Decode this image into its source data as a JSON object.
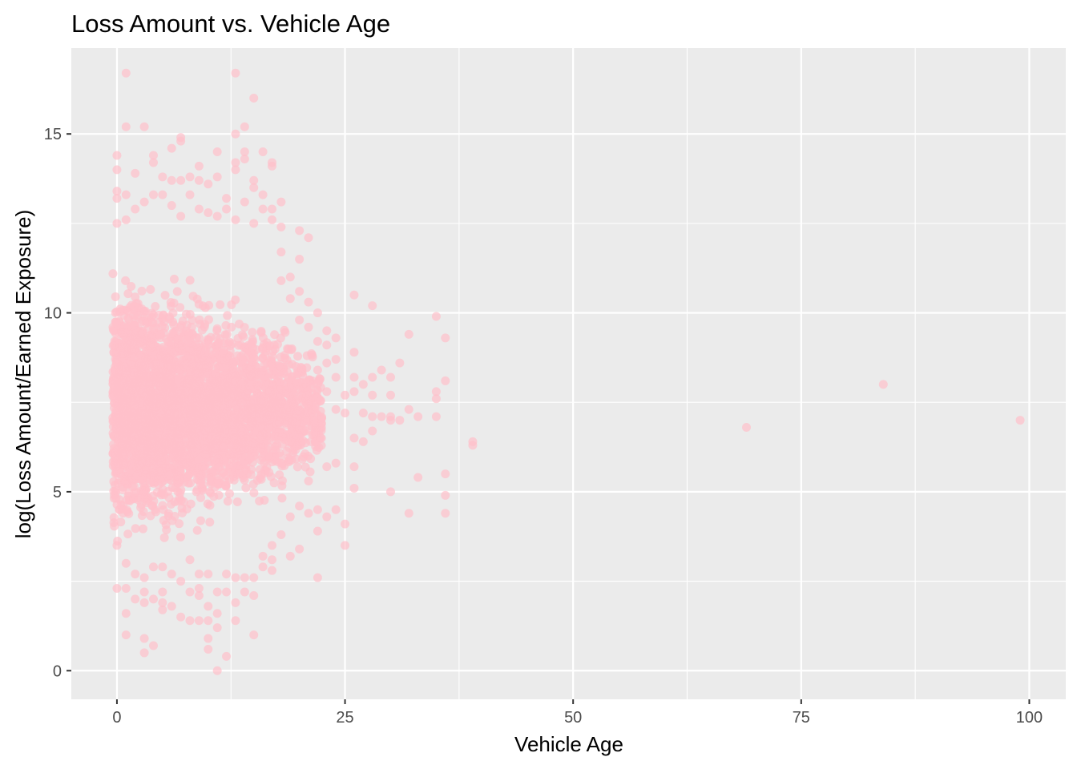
{
  "chart_data": {
    "type": "scatter",
    "title": "Loss Amount vs. Vehicle Age",
    "xlabel": "Vehicle Age",
    "ylabel": "log(Loss Amount/Earned Exposure)",
    "xlim": [
      -5,
      104
    ],
    "ylim": [
      -0.8,
      17.4
    ],
    "x_ticks": [
      0,
      25,
      50,
      75,
      100
    ],
    "y_ticks": [
      0,
      5,
      10,
      15
    ],
    "x_tick_labels": [
      "0",
      "25",
      "50",
      "75",
      "100"
    ],
    "y_tick_labels": [
      "0",
      "5",
      "10",
      "15"
    ],
    "grid": true,
    "legend": "none",
    "colors": {
      "panel": "#ebebeb",
      "grid": "#ffffff",
      "point": "#ffc0cb",
      "tick": "#333333",
      "tick_label": "#4d4d4d"
    },
    "point_opacity": 0.7,
    "points": [
      {
        "x": 0,
        "y": 14.4
      },
      {
        "x": 0,
        "y": 14.0
      },
      {
        "x": 0,
        "y": 13.4
      },
      {
        "x": 0,
        "y": 13.2
      },
      {
        "x": 0,
        "y": 12.5
      },
      {
        "x": 0,
        "y": 3.5
      },
      {
        "x": 0,
        "y": 2.3
      },
      {
        "x": 1,
        "y": 16.7
      },
      {
        "x": 1,
        "y": 15.2
      },
      {
        "x": 1,
        "y": 13.3
      },
      {
        "x": 1,
        "y": 12.6
      },
      {
        "x": 1,
        "y": 3.0
      },
      {
        "x": 1,
        "y": 2.3
      },
      {
        "x": 1,
        "y": 1.6
      },
      {
        "x": 1,
        "y": 1.0
      },
      {
        "x": 2,
        "y": 13.9
      },
      {
        "x": 2,
        "y": 12.9
      },
      {
        "x": 2,
        "y": 2.7
      },
      {
        "x": 2,
        "y": 2.0
      },
      {
        "x": 3,
        "y": 15.2
      },
      {
        "x": 3,
        "y": 13.1
      },
      {
        "x": 3,
        "y": 2.6
      },
      {
        "x": 3,
        "y": 2.2
      },
      {
        "x": 3,
        "y": 1.9
      },
      {
        "x": 3,
        "y": 0.9
      },
      {
        "x": 3,
        "y": 0.5
      },
      {
        "x": 4,
        "y": 14.4
      },
      {
        "x": 4,
        "y": 14.2
      },
      {
        "x": 4,
        "y": 13.3
      },
      {
        "x": 4,
        "y": 2.9
      },
      {
        "x": 4,
        "y": 2.0
      },
      {
        "x": 4,
        "y": 0.7
      },
      {
        "x": 5,
        "y": 13.8
      },
      {
        "x": 5,
        "y": 13.3
      },
      {
        "x": 5,
        "y": 2.9
      },
      {
        "x": 5,
        "y": 2.2
      },
      {
        "x": 5,
        "y": 1.9
      },
      {
        "x": 5,
        "y": 1.7
      },
      {
        "x": 6,
        "y": 14.6
      },
      {
        "x": 6,
        "y": 13.7
      },
      {
        "x": 6,
        "y": 13.0
      },
      {
        "x": 6,
        "y": 2.7
      },
      {
        "x": 6,
        "y": 1.8
      },
      {
        "x": 7,
        "y": 14.9
      },
      {
        "x": 7,
        "y": 14.8
      },
      {
        "x": 7,
        "y": 13.7
      },
      {
        "x": 7,
        "y": 12.7
      },
      {
        "x": 7,
        "y": 2.5
      },
      {
        "x": 7,
        "y": 1.5
      },
      {
        "x": 8,
        "y": 13.8
      },
      {
        "x": 8,
        "y": 13.3
      },
      {
        "x": 8,
        "y": 3.1
      },
      {
        "x": 8,
        "y": 2.2
      },
      {
        "x": 8,
        "y": 1.4
      },
      {
        "x": 9,
        "y": 14.1
      },
      {
        "x": 9,
        "y": 13.7
      },
      {
        "x": 9,
        "y": 12.9
      },
      {
        "x": 9,
        "y": 2.7
      },
      {
        "x": 9,
        "y": 2.3
      },
      {
        "x": 9,
        "y": 2.1
      },
      {
        "x": 9,
        "y": 1.4
      },
      {
        "x": 10,
        "y": 13.6
      },
      {
        "x": 10,
        "y": 12.8
      },
      {
        "x": 10,
        "y": 2.7
      },
      {
        "x": 10,
        "y": 1.8
      },
      {
        "x": 10,
        "y": 1.4
      },
      {
        "x": 10,
        "y": 0.9
      },
      {
        "x": 10,
        "y": 0.6
      },
      {
        "x": 11,
        "y": 14.5
      },
      {
        "x": 11,
        "y": 13.8
      },
      {
        "x": 11,
        "y": 12.7
      },
      {
        "x": 11,
        "y": 2.2
      },
      {
        "x": 11,
        "y": 1.6
      },
      {
        "x": 11,
        "y": 1.2
      },
      {
        "x": 11,
        "y": 0.0
      },
      {
        "x": 12,
        "y": 13.2
      },
      {
        "x": 12,
        "y": 12.9
      },
      {
        "x": 12,
        "y": 2.7
      },
      {
        "x": 12,
        "y": 2.2
      },
      {
        "x": 12,
        "y": 0.4
      },
      {
        "x": 13,
        "y": 16.7
      },
      {
        "x": 13,
        "y": 15.0
      },
      {
        "x": 13,
        "y": 14.2
      },
      {
        "x": 13,
        "y": 14.0
      },
      {
        "x": 13,
        "y": 12.6
      },
      {
        "x": 13,
        "y": 2.6
      },
      {
        "x": 13,
        "y": 1.9
      },
      {
        "x": 13,
        "y": 1.4
      },
      {
        "x": 14,
        "y": 15.2
      },
      {
        "x": 14,
        "y": 14.5
      },
      {
        "x": 14,
        "y": 14.3
      },
      {
        "x": 14,
        "y": 13.1
      },
      {
        "x": 14,
        "y": 2.6
      },
      {
        "x": 14,
        "y": 2.2
      },
      {
        "x": 15,
        "y": 16.0
      },
      {
        "x": 15,
        "y": 13.7
      },
      {
        "x": 15,
        "y": 13.5
      },
      {
        "x": 15,
        "y": 12.5
      },
      {
        "x": 15,
        "y": 2.6
      },
      {
        "x": 15,
        "y": 2.1
      },
      {
        "x": 15,
        "y": 1.0
      },
      {
        "x": 16,
        "y": 14.5
      },
      {
        "x": 16,
        "y": 13.3
      },
      {
        "x": 16,
        "y": 12.9
      },
      {
        "x": 16,
        "y": 3.2
      },
      {
        "x": 16,
        "y": 2.9
      },
      {
        "x": 17,
        "y": 14.1
      },
      {
        "x": 17,
        "y": 14.2
      },
      {
        "x": 17,
        "y": 12.9
      },
      {
        "x": 17,
        "y": 12.6
      },
      {
        "x": 17,
        "y": 3.5
      },
      {
        "x": 17,
        "y": 3.1
      },
      {
        "x": 17,
        "y": 2.8
      },
      {
        "x": 18,
        "y": 13.1
      },
      {
        "x": 18,
        "y": 12.4
      },
      {
        "x": 18,
        "y": 11.7
      },
      {
        "x": 18,
        "y": 10.9
      },
      {
        "x": 18,
        "y": 3.8
      },
      {
        "x": 19,
        "y": 11.0
      },
      {
        "x": 19,
        "y": 10.4
      },
      {
        "x": 19,
        "y": 4.3
      },
      {
        "x": 19,
        "y": 3.2
      },
      {
        "x": 20,
        "y": 12.3
      },
      {
        "x": 20,
        "y": 11.5
      },
      {
        "x": 20,
        "y": 10.6
      },
      {
        "x": 20,
        "y": 9.8
      },
      {
        "x": 20,
        "y": 4.6
      },
      {
        "x": 20,
        "y": 3.4
      },
      {
        "x": 21,
        "y": 12.1
      },
      {
        "x": 21,
        "y": 10.3
      },
      {
        "x": 21,
        "y": 9.6
      },
      {
        "x": 21,
        "y": 5.3
      },
      {
        "x": 21,
        "y": 4.4
      },
      {
        "x": 22,
        "y": 10.0
      },
      {
        "x": 22,
        "y": 9.2
      },
      {
        "x": 22,
        "y": 8.4
      },
      {
        "x": 22,
        "y": 4.5
      },
      {
        "x": 22,
        "y": 3.9
      },
      {
        "x": 22,
        "y": 2.6
      },
      {
        "x": 23,
        "y": 9.5
      },
      {
        "x": 23,
        "y": 9.1
      },
      {
        "x": 23,
        "y": 8.6
      },
      {
        "x": 23,
        "y": 7.8
      },
      {
        "x": 23,
        "y": 5.7
      },
      {
        "x": 23,
        "y": 4.3
      },
      {
        "x": 24,
        "y": 9.3
      },
      {
        "x": 24,
        "y": 8.7
      },
      {
        "x": 24,
        "y": 8.2
      },
      {
        "x": 24,
        "y": 7.3
      },
      {
        "x": 24,
        "y": 5.8
      },
      {
        "x": 24,
        "y": 4.5
      },
      {
        "x": 25,
        "y": 7.7
      },
      {
        "x": 25,
        "y": 7.2
      },
      {
        "x": 25,
        "y": 4.1
      },
      {
        "x": 25,
        "y": 3.5
      },
      {
        "x": 26,
        "y": 10.5
      },
      {
        "x": 26,
        "y": 8.9
      },
      {
        "x": 26,
        "y": 8.2
      },
      {
        "x": 26,
        "y": 7.8
      },
      {
        "x": 26,
        "y": 6.5
      },
      {
        "x": 26,
        "y": 5.7
      },
      {
        "x": 26,
        "y": 5.1
      },
      {
        "x": 27,
        "y": 8.0
      },
      {
        "x": 27,
        "y": 7.2
      },
      {
        "x": 27,
        "y": 6.4
      },
      {
        "x": 28,
        "y": 10.2
      },
      {
        "x": 28,
        "y": 8.2
      },
      {
        "x": 28,
        "y": 7.7
      },
      {
        "x": 28,
        "y": 7.1
      },
      {
        "x": 28,
        "y": 6.7
      },
      {
        "x": 29,
        "y": 8.4
      },
      {
        "x": 29,
        "y": 7.1
      },
      {
        "x": 30,
        "y": 8.2
      },
      {
        "x": 30,
        "y": 7.7
      },
      {
        "x": 30,
        "y": 7.1
      },
      {
        "x": 30,
        "y": 7.0
      },
      {
        "x": 30,
        "y": 5.0
      },
      {
        "x": 31,
        "y": 8.6
      },
      {
        "x": 31,
        "y": 7.0
      },
      {
        "x": 32,
        "y": 9.4
      },
      {
        "x": 32,
        "y": 7.3
      },
      {
        "x": 32,
        "y": 4.4
      },
      {
        "x": 33,
        "y": 7.1
      },
      {
        "x": 33,
        "y": 5.4
      },
      {
        "x": 35,
        "y": 9.9
      },
      {
        "x": 35,
        "y": 7.8
      },
      {
        "x": 35,
        "y": 7.6
      },
      {
        "x": 35,
        "y": 7.1
      },
      {
        "x": 36,
        "y": 9.3
      },
      {
        "x": 36,
        "y": 8.1
      },
      {
        "x": 36,
        "y": 5.5
      },
      {
        "x": 36,
        "y": 4.9
      },
      {
        "x": 36,
        "y": 4.4
      },
      {
        "x": 39,
        "y": 6.4
      },
      {
        "x": 39,
        "y": 6.3
      },
      {
        "x": 69,
        "y": 6.8
      },
      {
        "x": 84,
        "y": 8.0
      },
      {
        "x": 99,
        "y": 7.0
      }
    ],
    "dense_region": {
      "x_range": [
        0,
        22
      ],
      "y_median": 7.3,
      "y_spread_max": 3.3
    }
  }
}
